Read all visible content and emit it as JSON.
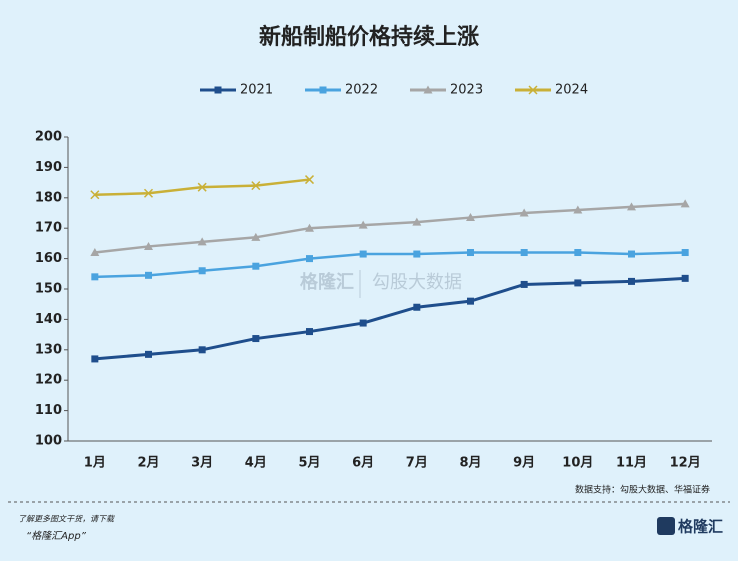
{
  "chart_data": {
    "type": "line",
    "title": "新船制船价格持续上涨",
    "categories": [
      "1月",
      "2月",
      "3月",
      "4月",
      "5月",
      "6月",
      "7月",
      "8月",
      "9月",
      "10月",
      "11月",
      "12月"
    ],
    "series": [
      {
        "name": "2021",
        "color": "#1f4e8c",
        "marker": "square",
        "values": [
          127,
          128.5,
          130,
          133.7,
          136,
          138.8,
          144,
          146,
          151.5,
          152,
          152.5,
          153.5
        ]
      },
      {
        "name": "2022",
        "color": "#4aa3df",
        "marker": "square",
        "values": [
          154,
          154.5,
          156,
          157.5,
          160,
          161.5,
          161.5,
          162,
          162,
          162,
          161.5,
          162
        ]
      },
      {
        "name": "2023",
        "color": "#a6a6a6",
        "marker": "triangle",
        "values": [
          162,
          164,
          165.5,
          167,
          170,
          171,
          172,
          173.5,
          175,
          176,
          177,
          178
        ]
      },
      {
        "name": "2024",
        "color": "#c9b037",
        "marker": "x",
        "values": [
          181,
          181.5,
          183.5,
          184,
          186,
          null,
          null,
          null,
          null,
          null,
          null,
          null
        ]
      }
    ],
    "ylim": [
      100,
      200
    ],
    "yticks": [
      100,
      110,
      120,
      130,
      140,
      150,
      160,
      170,
      180,
      190,
      200
    ],
    "grid": false,
    "legend": "top",
    "watermark": [
      "格隆汇",
      "勾股大数据"
    ],
    "source": "数据支持：勾股大数据、华福证券",
    "footer_note": "了解更多图文干货，请下载",
    "footer_app": "“格隆汇App”",
    "logo": "格隆汇"
  }
}
